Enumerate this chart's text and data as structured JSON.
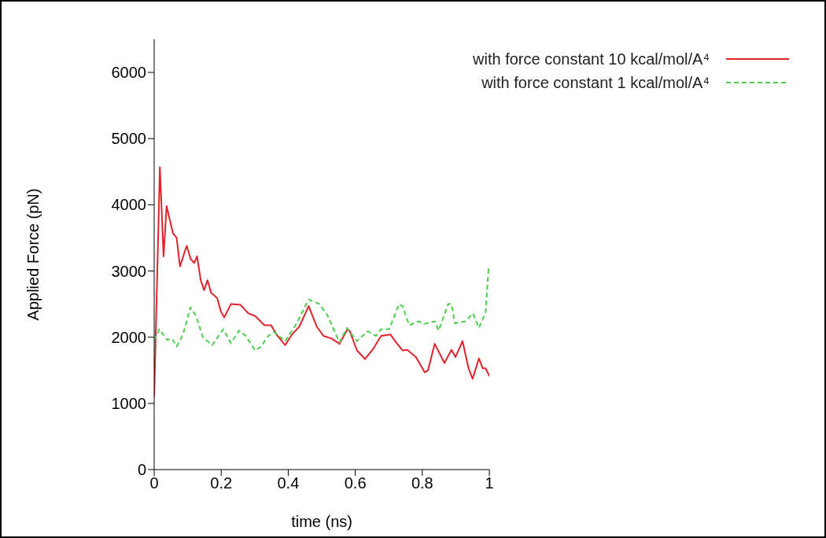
{
  "chart_data": {
    "type": "line",
    "xlabel": "time (ns)",
    "ylabel": "Applied Force (pN)",
    "xlim": [
      0,
      1
    ],
    "xticks": [
      0,
      0.2,
      0.4,
      0.6,
      0.8,
      1
    ],
    "ylim": [
      0,
      6500
    ],
    "yticks": [
      0,
      1000,
      2000,
      3000,
      4000,
      5000,
      6000
    ],
    "legend": "top right",
    "series": [
      {
        "name": "with force constant 10 kcal/mol/A⁴",
        "color": "#e3232c",
        "line_style": "solid",
        "x": [
          0,
          0.017,
          0.028,
          0.037,
          0.056,
          0.067,
          0.077,
          0.097,
          0.109,
          0.119,
          0.128,
          0.139,
          0.149,
          0.159,
          0.17,
          0.188,
          0.199,
          0.209,
          0.229,
          0.257,
          0.281,
          0.301,
          0.329,
          0.349,
          0.365,
          0.391,
          0.411,
          0.433,
          0.461,
          0.485,
          0.505,
          0.529,
          0.553,
          0.577,
          0.583,
          0.605,
          0.629,
          0.653,
          0.677,
          0.705,
          0.725,
          0.741,
          0.755,
          0.781,
          0.807,
          0.817,
          0.837,
          0.866,
          0.887,
          0.899,
          0.92,
          0.938,
          0.95,
          0.969,
          0.98,
          0.989,
          1
        ],
        "values": [
          1100,
          4570,
          3220,
          3980,
          3570,
          3500,
          3070,
          3380,
          3180,
          3120,
          3220,
          2860,
          2710,
          2860,
          2670,
          2590,
          2390,
          2300,
          2500,
          2490,
          2360,
          2320,
          2180,
          2180,
          2040,
          1880,
          2040,
          2160,
          2470,
          2160,
          2020,
          1980,
          1900,
          2120,
          2100,
          1800,
          1670,
          1820,
          2020,
          2040,
          1900,
          1800,
          1810,
          1700,
          1470,
          1500,
          1900,
          1610,
          1810,
          1700,
          1940,
          1530,
          1370,
          1680,
          1530,
          1530,
          1410
        ]
      },
      {
        "name": "with force constant 1 kcal/mol/A⁴",
        "color": "#4ccf4c",
        "line_style": "dashed",
        "x": [
          0,
          0.015,
          0.039,
          0.053,
          0.067,
          0.086,
          0.108,
          0.125,
          0.145,
          0.173,
          0.206,
          0.229,
          0.253,
          0.273,
          0.301,
          0.317,
          0.341,
          0.357,
          0.391,
          0.425,
          0.461,
          0.493,
          0.517,
          0.553,
          0.575,
          0.605,
          0.637,
          0.661,
          0.677,
          0.701,
          0.731,
          0.741,
          0.761,
          0.789,
          0.805,
          0.837,
          0.849,
          0.877,
          0.887,
          0.897,
          0.929,
          0.951,
          0.969,
          0.989,
          0.998,
          1
        ],
        "values": [
          1950,
          2120,
          1960,
          1980,
          1860,
          2040,
          2450,
          2320,
          2000,
          1880,
          2120,
          1910,
          2100,
          2020,
          1800,
          1850,
          2020,
          2080,
          1940,
          2210,
          2570,
          2500,
          2330,
          1920,
          2140,
          1940,
          2090,
          2020,
          2120,
          2120,
          2500,
          2470,
          2180,
          2240,
          2200,
          2240,
          2100,
          2500,
          2500,
          2210,
          2240,
          2360,
          2140,
          2380,
          3060,
          3000
        ]
      }
    ]
  }
}
